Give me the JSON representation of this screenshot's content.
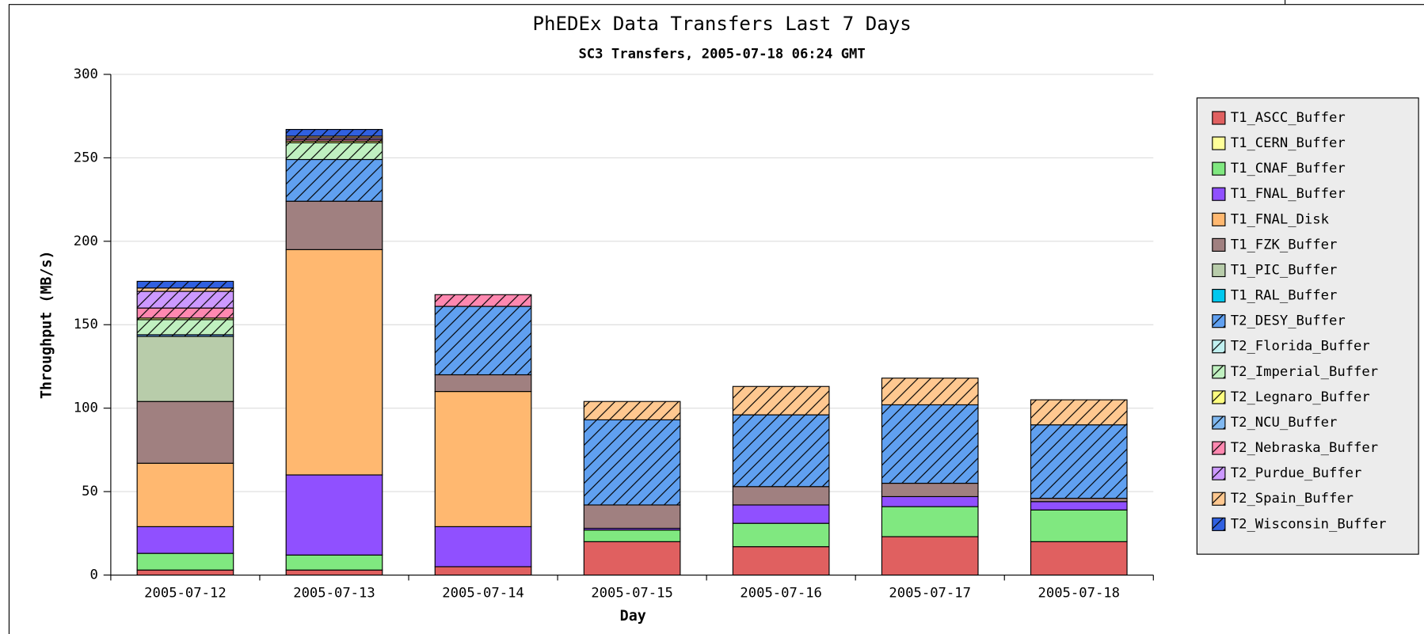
{
  "chart_data": {
    "type": "stacked_bar",
    "title": "PhEDEx Data Transfers Last 7 Days",
    "subtitle": "SC3 Transfers, 2005-07-18 06:24 GMT",
    "x_label": "Day",
    "y_label": "Throughput (MB/s)",
    "categories": [
      "2005-07-12",
      "2005-07-13",
      "2005-07-14",
      "2005-07-15",
      "2005-07-16",
      "2005-07-17",
      "2005-07-18"
    ],
    "ylim": [
      0,
      300
    ],
    "yticks": [
      0,
      50,
      100,
      150,
      200,
      250,
      300
    ],
    "grid": true,
    "legend": "right",
    "series": [
      {
        "name": "T1_ASCC_Buffer",
        "color": "#e06060",
        "hatch": false,
        "values": [
          3,
          3,
          5,
          20,
          17,
          23,
          20
        ]
      },
      {
        "name": "T1_CERN_Buffer",
        "color": "#ffff99",
        "hatch": false,
        "values": [
          0,
          0,
          0,
          0,
          0,
          0,
          0
        ]
      },
      {
        "name": "T1_CNAF_Buffer",
        "color": "#80e880",
        "hatch": false,
        "values": [
          10,
          9,
          0,
          7,
          14,
          18,
          19
        ]
      },
      {
        "name": "T1_FNAL_Buffer",
        "color": "#9050ff",
        "hatch": false,
        "values": [
          16,
          48,
          24,
          1,
          11,
          6,
          5
        ]
      },
      {
        "name": "T1_FNAL_Disk",
        "color": "#ffb870",
        "hatch": false,
        "values": [
          38,
          135,
          81,
          0,
          0,
          0,
          0
        ]
      },
      {
        "name": "T1_FZK_Buffer",
        "color": "#a08080",
        "hatch": false,
        "values": [
          37,
          29,
          10,
          14,
          11,
          8,
          2
        ]
      },
      {
        "name": "T1_PIC_Buffer",
        "color": "#b8ccaa",
        "hatch": false,
        "values": [
          39,
          0,
          0,
          0,
          0,
          0,
          0
        ]
      },
      {
        "name": "T1_RAL_Buffer",
        "color": "#00c8ee",
        "hatch": false,
        "values": [
          0,
          0,
          0,
          0,
          0,
          0,
          0
        ]
      },
      {
        "name": "T2_DESY_Buffer",
        "color": "#60a0f0",
        "hatch": true,
        "values": [
          1,
          25,
          41,
          51,
          43,
          47,
          44
        ]
      },
      {
        "name": "T2_Florida_Buffer",
        "color": "#c0f0f0",
        "hatch": true,
        "values": [
          0,
          0,
          0,
          0,
          0,
          0,
          0
        ]
      },
      {
        "name": "T2_Imperial_Buffer",
        "color": "#c0f0c0",
        "hatch": true,
        "values": [
          9,
          10,
          0,
          0,
          0,
          0,
          0
        ]
      },
      {
        "name": "T2_Legnaro_Buffer",
        "color": "#ffff80",
        "hatch": true,
        "values": [
          1,
          1,
          0,
          0,
          0,
          0,
          0
        ]
      },
      {
        "name": "T2_NCU_Buffer",
        "color": "#80b8f0",
        "hatch": true,
        "values": [
          0,
          0,
          0,
          0,
          0,
          0,
          0
        ]
      },
      {
        "name": "T2_Nebraska_Buffer",
        "color": "#ff88b0",
        "hatch": true,
        "values": [
          6,
          1,
          7,
          0,
          0,
          0,
          0
        ]
      },
      {
        "name": "T2_Purdue_Buffer",
        "color": "#cc99ff",
        "hatch": true,
        "values": [
          10,
          1,
          0,
          0,
          0,
          0,
          0
        ]
      },
      {
        "name": "T2_Spain_Buffer",
        "color": "#ffc890",
        "hatch": true,
        "values": [
          2,
          1,
          0,
          11,
          17,
          16,
          15
        ]
      },
      {
        "name": "T2_Wisconsin_Buffer",
        "color": "#3060e0",
        "hatch": true,
        "values": [
          4,
          4,
          0,
          0,
          0,
          0,
          0
        ]
      }
    ]
  }
}
